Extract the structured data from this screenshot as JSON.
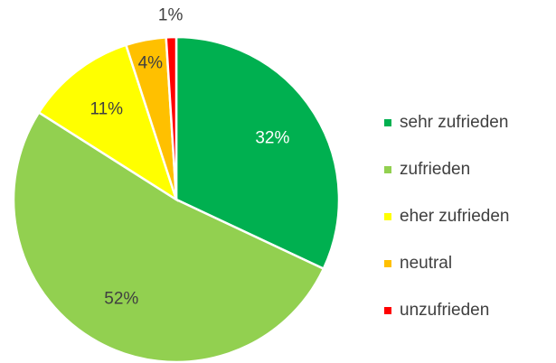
{
  "chart_data": {
    "type": "pie",
    "categories": [
      "sehr zufrieden",
      "zufrieden",
      "eher zufrieden",
      "neutral",
      "unzufrieden"
    ],
    "values": [
      32,
      52,
      11,
      4,
      1
    ],
    "value_labels": [
      "32%",
      "52%",
      "11%",
      "4%",
      "1%"
    ],
    "colors": [
      "#00b050",
      "#92d050",
      "#ffff00",
      "#ffc000",
      "#ff0000"
    ],
    "legend": "right"
  }
}
